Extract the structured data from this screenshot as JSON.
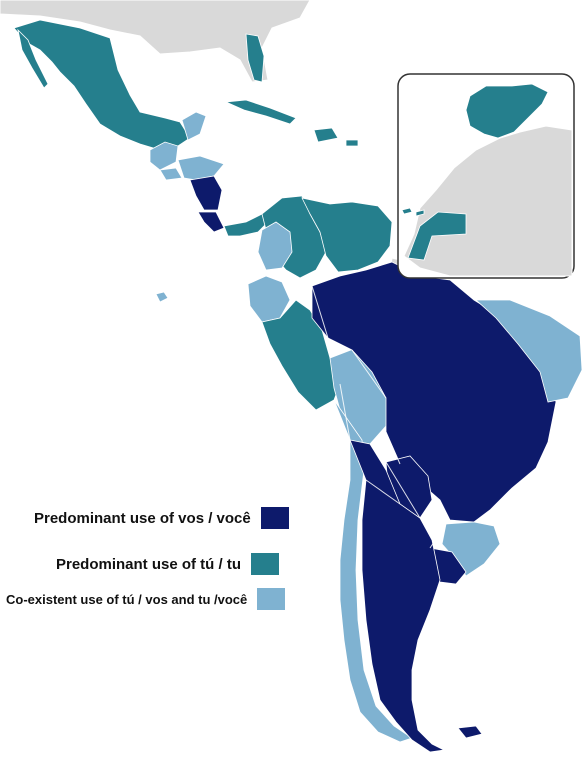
{
  "colors": {
    "vos": "#0d1a6b",
    "tu": "#257f8d",
    "coexist": "#7fb2d1",
    "other_land": "#d9d9d9",
    "sea": "#ffffff"
  },
  "legend": [
    {
      "key": "vos",
      "label": "Predominant use of vos / você"
    },
    {
      "key": "tu",
      "label": "Predominant use of tú / tu"
    },
    {
      "key": "coexist",
      "label": "Co-existent use of tú / vos and tu /você"
    }
  ],
  "regions": {
    "mexico": "tu",
    "cuba": "tu",
    "dominican_republic": "tu",
    "puerto_rico": "tu",
    "florida_enclave": "tu",
    "guatemala": "coexist",
    "honduras": "coexist",
    "el_salvador": "coexist",
    "nicaragua": "vos",
    "costa_rica": "vos",
    "panama": "tu",
    "colombia": "tu",
    "colombia_west": "coexist",
    "venezuela": "tu",
    "ecuador": "coexist",
    "peru": "tu",
    "bolivia": "coexist",
    "chile": "coexist",
    "argentina": "vos",
    "paraguay": "vos",
    "uruguay": "vos",
    "brazil": "vos",
    "brazil_northeast": "coexist",
    "brazil_south": "coexist",
    "spain": "tu",
    "western_sahara": "tu",
    "equatorial_guinea_islands": "tu"
  }
}
